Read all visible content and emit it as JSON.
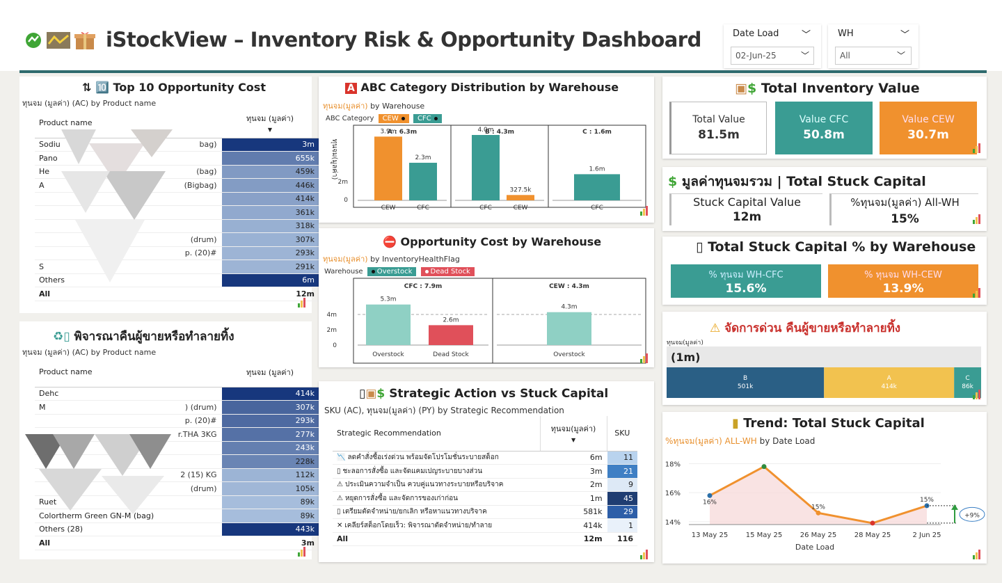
{
  "header": {
    "title": "iStockView – Inventory Risk & Opportunity Dashboard",
    "date_filter": {
      "label": "Date Load",
      "value": "02-Jun-25"
    },
    "wh_filter": {
      "label": "WH",
      "value": "All"
    }
  },
  "top10": {
    "title": "Top 10 Opportunity Cost",
    "subtitle": "ทุนจม (มูลค่า) (AC) by Product name",
    "col_product": "Product name",
    "col_value": "ทุนจม (มูลค่า)",
    "rows": [
      {
        "name": "Sodiu",
        "name2": "bag)",
        "value": "3m"
      },
      {
        "name": "Pano",
        "name2": "",
        "value": "655k"
      },
      {
        "name": "He",
        "name2": "(bag)",
        "value": "459k"
      },
      {
        "name": "A",
        "name2": "(Bigbag)",
        "value": "446k"
      },
      {
        "name": "",
        "name2": "",
        "value": "414k"
      },
      {
        "name": "",
        "name2": "",
        "value": "361k"
      },
      {
        "name": "",
        "name2": "",
        "value": "318k"
      },
      {
        "name": "",
        "name2": "(drum)",
        "value": "307k"
      },
      {
        "name": "",
        "name2": "p. (20)#",
        "value": "293k"
      },
      {
        "name": "S",
        "name2": "",
        "value": "291k"
      },
      {
        "name": "Others",
        "name2": "",
        "value": "6m"
      }
    ],
    "total_label": "All",
    "total_value": "12m"
  },
  "return": {
    "title": "พิจารณาคืนผู้ขายหรือทำลายทิ้ง",
    "subtitle": "ทุนจม (มูลค่า) (AC) by Product name",
    "col_product": "Product name",
    "col_value": "ทุนจม (มูลค่า)",
    "rows": [
      {
        "name": "Dehc",
        "name2": "",
        "value": "414k"
      },
      {
        "name": "M",
        "name2": ") (drum)",
        "value": "307k"
      },
      {
        "name": "",
        "name2": "p. (20)#",
        "value": "293k"
      },
      {
        "name": "",
        "name2": "r.THA 3KG",
        "value": "277k"
      },
      {
        "name": "",
        "name2": "",
        "value": "243k"
      },
      {
        "name": "",
        "name2": "",
        "value": "228k"
      },
      {
        "name": "",
        "name2": "2 (15) KG",
        "value": "112k"
      },
      {
        "name": "",
        "name2": "(drum)",
        "value": "105k"
      },
      {
        "name": "Ruet",
        "name2": "",
        "value": "89k"
      },
      {
        "name": "Colortherm Green GN-M (bag)",
        "name2": "",
        "value": "89k"
      },
      {
        "name": "Others (28)",
        "name2": "",
        "value": "443k"
      }
    ],
    "total_label": "All",
    "total_value": "3m"
  },
  "abc": {
    "title": "ABC Category Distribution by Warehouse",
    "subtitle_hl": "ทุนจม(มูลค่า)",
    "subtitle_rest": " by Warehouse",
    "legend_label": "ABC Category",
    "legend_cew": "CEW",
    "legend_cfc": "CFC",
    "ylabel": "ทุนจม(มูลค่า)",
    "yticks": [
      "2m",
      "0"
    ],
    "panels": [
      {
        "title": "A : 6.3m",
        "bars": [
          {
            "wh": "CEW",
            "value": 3.9,
            "label": "3.9m"
          },
          {
            "wh": "CFC",
            "value": 2.3,
            "label": "2.3m"
          }
        ]
      },
      {
        "title": "B : 4.3m",
        "bars": [
          {
            "wh": "CFC",
            "value": 4.0,
            "label": "4.0m"
          },
          {
            "wh": "CEW",
            "value": 0.3275,
            "label": "327.5k"
          }
        ]
      },
      {
        "title": "C : 1.6m",
        "bars": [
          {
            "wh": "CFC",
            "value": 1.6,
            "label": "1.6m"
          }
        ]
      }
    ]
  },
  "opp": {
    "title": "Opportunity Cost by Warehouse",
    "subtitle_hl": "ทุนจม(มูลค่า)",
    "subtitle_rest": " by InventoryHealthFlag",
    "legend_label": "Warehouse",
    "legend_over": "Overstock",
    "legend_dead": "Dead Stock",
    "yticks": [
      "4m",
      "2m",
      "0"
    ],
    "panels": [
      {
        "title": "CFC : 7.9m",
        "bars": [
          {
            "flag": "Overstock",
            "value": 5.3,
            "label": "5.3m",
            "axis": "Overstock"
          },
          {
            "flag": "Dead Stock",
            "value": 2.6,
            "label": "2.6m",
            "axis": "Dead Stock"
          }
        ]
      },
      {
        "title": "CEW : 4.3m",
        "bars": [
          {
            "flag": "Overstock",
            "value": 4.3,
            "label": "4.3m",
            "axis": "Overstock"
          }
        ]
      }
    ]
  },
  "strategic": {
    "title": "Strategic Action vs Stuck Capital",
    "subtitle": "SKU (AC), ทุนจม(มูลค่า) (PY) by Strategic Recommendation",
    "col_rec": "Strategic Recommendation",
    "col_value": "ทุนจม(มูลค่า)",
    "col_sku": "SKU",
    "rows": [
      {
        "icon": "📉",
        "text": "ลดคำสั่งซื้อเร่งด่วน พร้อมจัดโปรโมชั่นระบายสต็อก",
        "value": "6m",
        "sku": "11"
      },
      {
        "icon": "▯",
        "text": "ชะลอการสั่งซื้อ และจัดแคมเปญระบายบางส่วน",
        "value": "3m",
        "sku": "21"
      },
      {
        "icon": "⚠",
        "text": "ประเมินความจำเป็น ควบคู่แนวทางระบายหรือบริจาค",
        "value": "2m",
        "sku": "9"
      },
      {
        "icon": "⚠",
        "text": "หยุดการสั่งซื้อ และจัดการของเก่าก่อน",
        "value": "1m",
        "sku": "45"
      },
      {
        "icon": "▯",
        "text": "เตรียมตัดจำหน่าย/ยกเลิก หรือหาแนวทางบริจาค",
        "value": "581k",
        "sku": "29"
      },
      {
        "icon": "✕",
        "text": "เคลียร์สต็อกโดยเร็ว: พิจารณาตัดจำหน่าย/ทำลาย",
        "value": "414k",
        "sku": "1"
      }
    ],
    "total_label": "All",
    "total_value": "12m",
    "total_sku": "116"
  },
  "total_inv": {
    "title": "Total Inventory Value",
    "cards": [
      {
        "label": "Total Value",
        "value": "81.5m"
      },
      {
        "label": "Value CFC",
        "value": "50.8m"
      },
      {
        "label": "Value CEW",
        "value": "30.7m"
      }
    ]
  },
  "stuck": {
    "title": "มูลค่าทุนจมรวม | Total Stuck Capital",
    "cards": [
      {
        "label": "Stuck Capital Value",
        "value": "12m"
      },
      {
        "label": "%ทุนจม(มูลค่า) All-WH",
        "value": "15%"
      }
    ]
  },
  "stuck_pct": {
    "title": "Total Stuck Capital % by Warehouse",
    "cards": [
      {
        "label": "% ทุนจม WH-CFC",
        "value": "15.6%"
      },
      {
        "label": "% ทุนจม WH-CEW",
        "value": "13.9%"
      }
    ]
  },
  "urgent": {
    "title": "จัดการด่วน คืนผู้ขายหรือทำลายทิ้ง",
    "subtitle": "ทุนจม(มูลค่า)",
    "total": "(1m)",
    "segments": [
      {
        "cat": "B",
        "value": 501,
        "label": "501k",
        "color": "#2a5f85"
      },
      {
        "cat": "A",
        "value": 414,
        "label": "414k",
        "color": "#f2c24f"
      },
      {
        "cat": "C",
        "value": 86,
        "label": "86k",
        "color": "#3a9c93"
      }
    ]
  },
  "trend": {
    "title": "Trend: Total Stuck Capital",
    "subtitle_hl": "%ทุนจม(มูลค่า) ALL-WH",
    "subtitle_rest": " by Date Load",
    "xlabel": "Date Load",
    "yticks": [
      "18%",
      "16%",
      "14%"
    ],
    "change": "+9%",
    "chart_data": {
      "type": "line",
      "x": [
        "13 May 25",
        "15 May 25",
        "26 May 25",
        "28 May 25",
        "2 Jun 25"
      ],
      "values": [
        15.8,
        17.8,
        14.6,
        13.9,
        15.1
      ],
      "labels": [
        "16%",
        "",
        "15%",
        "",
        "15%"
      ],
      "ylim": [
        13.8,
        18.6
      ]
    }
  },
  "colors": {
    "teal": "#3a9c93",
    "orange": "#f0912e",
    "navy": "#1f3d72",
    "red": "#e0505a",
    "header_line": "#2f6b6e"
  }
}
